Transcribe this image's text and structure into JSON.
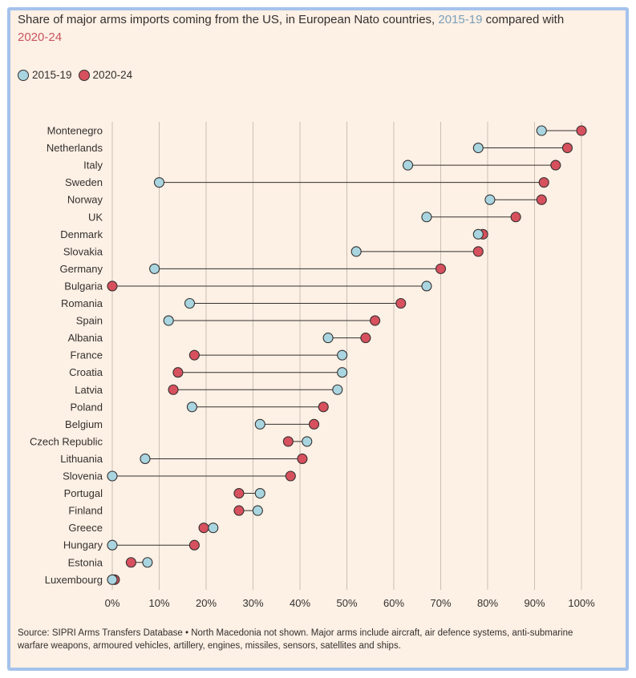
{
  "title": {
    "prefix": "Share of major arms imports coming from the US, in European Nato countries,",
    "period_a": "2015-19",
    "middle": "compared with",
    "period_b": "2020-24"
  },
  "legend": {
    "a_label": "2015-19",
    "b_label": "2020-24"
  },
  "colors": {
    "a_fill": "#a9d5e0",
    "b_fill": "#d7505e",
    "outline": "#33302e",
    "grid": "#cbbfb4",
    "connector": "#33302e"
  },
  "source": "Source: SIPRI Arms Transfers Database • North Macedonia not shown. Major arms include aircraft, air defence systems, anti-submarine warfare weapons, armoured vehicles, artillery, engines, missiles, sensors, satellites and ships.",
  "chart_data": {
    "type": "dumbbell",
    "title": "Share of major arms imports coming from the US, in European Nato countries, 2015-19 compared with 2020-24",
    "xlim": [
      0,
      100
    ],
    "xticks": [
      0,
      10,
      20,
      30,
      40,
      50,
      60,
      70,
      80,
      90,
      100
    ],
    "xtick_labels": [
      "0%",
      "10%",
      "20%",
      "30%",
      "40%",
      "50%",
      "60%",
      "70%",
      "80%",
      "90%",
      "100%"
    ],
    "xlabel": "",
    "ylabel": "",
    "grid": true,
    "categories": [
      "Montenegro",
      "Netherlands",
      "Italy",
      "Sweden",
      "Norway",
      "UK",
      "Denmark",
      "Slovakia",
      "Germany",
      "Bulgaria",
      "Romania",
      "Spain",
      "Albania",
      "France",
      "Croatia",
      "Latvia",
      "Poland",
      "Belgium",
      "Czech Republic",
      "Lithuania",
      "Slovenia",
      "Portugal",
      "Finland",
      "Greece",
      "Hungary",
      "Estonia",
      "Luxembourg"
    ],
    "series": [
      {
        "name": "2015-19",
        "values": [
          91.5,
          78,
          63,
          10,
          80.5,
          67,
          78,
          52,
          9,
          67,
          16.5,
          12,
          46,
          49,
          49,
          48,
          17,
          31.5,
          41.5,
          7,
          0,
          31.5,
          31,
          21.5,
          0,
          7.5,
          0
        ]
      },
      {
        "name": "2020-24",
        "values": [
          100,
          97,
          94.5,
          92,
          91.5,
          86,
          79,
          78,
          70,
          0,
          61.5,
          56,
          54,
          17.5,
          14,
          13,
          45,
          43,
          37.5,
          40.5,
          38,
          27,
          27,
          19.5,
          17.5,
          4,
          0.5
        ]
      }
    ]
  }
}
